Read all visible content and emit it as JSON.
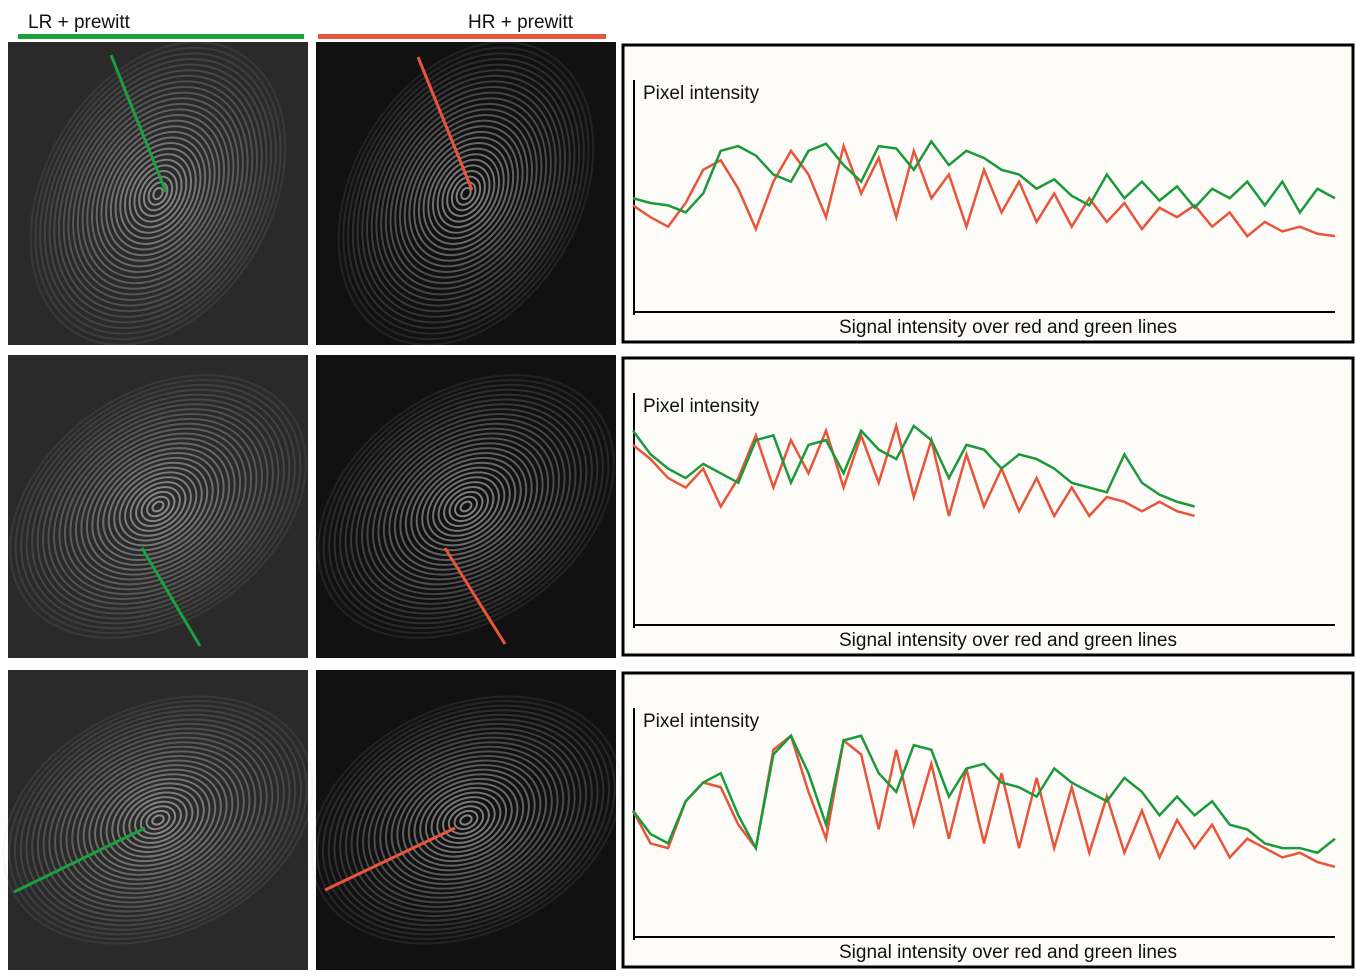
{
  "headers": {
    "lr": "LR + prewitt",
    "hr": "HR + prewitt"
  },
  "chart_data": [
    {
      "type": "line",
      "y_label": "Pixel intensity",
      "x_label": "Signal intensity over red and green lines",
      "xlim": [
        0,
        40
      ],
      "ylim": [
        0,
        100
      ],
      "series": [
        {
          "color": "#e8553a",
          "values": [
            45,
            40,
            36,
            46,
            60,
            64,
            52,
            35,
            55,
            68,
            58,
            40,
            70,
            50,
            65,
            40,
            68,
            48,
            58,
            36,
            60,
            42,
            55,
            38,
            50,
            36,
            48,
            38,
            46,
            35,
            44,
            40,
            45,
            36,
            42,
            32,
            38,
            34,
            36,
            33,
            32
          ]
        },
        {
          "color": "#1a9a3a",
          "values": [
            48,
            46,
            45,
            42,
            50,
            68,
            70,
            66,
            58,
            55,
            68,
            71,
            62,
            55,
            70,
            69,
            60,
            72,
            62,
            68,
            65,
            60,
            58,
            52,
            56,
            49,
            45,
            58,
            48,
            55,
            47,
            53,
            44,
            52,
            48,
            55,
            45,
            55,
            42,
            52,
            48
          ]
        }
      ]
    },
    {
      "type": "line",
      "y_label": "Pixel intensity",
      "x_label": "Signal intensity over red and green lines",
      "xlim": [
        0,
        40
      ],
      "ylim": [
        0,
        100
      ],
      "series": [
        {
          "color": "#e8553a",
          "values": [
            76,
            70,
            62,
            58,
            66,
            50,
            62,
            80,
            58,
            78,
            64,
            82,
            58,
            80,
            60,
            84,
            54,
            78,
            46,
            72,
            50,
            66,
            48,
            62,
            46,
            58,
            46,
            54,
            52,
            48,
            52,
            48,
            46
          ]
        },
        {
          "color": "#1a9a3a",
          "values": [
            82,
            72,
            66,
            62,
            68,
            64,
            60,
            78,
            80,
            60,
            76,
            78,
            64,
            82,
            74,
            70,
            84,
            78,
            62,
            76,
            74,
            66,
            72,
            70,
            66,
            60,
            58,
            56,
            72,
            60,
            55,
            52,
            50
          ]
        }
      ]
    },
    {
      "type": "line",
      "y_label": "Pixel intensity",
      "x_label": "Signal intensity over red and green lines",
      "xlim": [
        0,
        40
      ],
      "ylim": [
        0,
        100
      ],
      "series": [
        {
          "color": "#e8553a",
          "values": [
            54,
            40,
            38,
            58,
            66,
            64,
            48,
            38,
            80,
            86,
            62,
            42,
            84,
            78,
            46,
            80,
            48,
            74,
            42,
            72,
            40,
            70,
            38,
            68,
            38,
            64,
            36,
            60,
            36,
            54,
            34,
            50,
            38,
            48,
            34,
            42,
            38,
            34,
            36,
            32,
            30
          ]
        },
        {
          "color": "#1a9a3a",
          "values": [
            54,
            44,
            40,
            58,
            66,
            70,
            52,
            38,
            78,
            86,
            70,
            48,
            84,
            86,
            70,
            62,
            82,
            80,
            60,
            72,
            74,
            66,
            64,
            60,
            72,
            66,
            62,
            58,
            68,
            62,
            52,
            60,
            52,
            58,
            48,
            46,
            40,
            38,
            38,
            36,
            42
          ]
        }
      ]
    }
  ]
}
